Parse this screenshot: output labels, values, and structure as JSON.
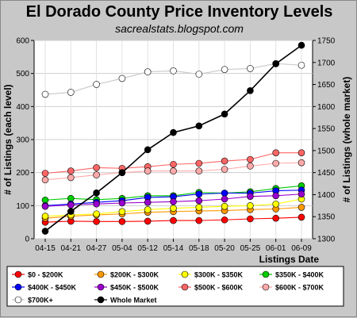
{
  "chart_data": {
    "type": "line",
    "title": "El Dorado County Price Inventory Levels",
    "subtitle": "sacrealstats.blogspot.com",
    "xlabel": "Listings Date",
    "ylabel_left": "# of Listings (each level)",
    "ylabel_right": "# of Listings (whole market)",
    "ylim_left": [
      0,
      600
    ],
    "ylim_right": [
      1300,
      1750
    ],
    "yticks_left": [
      0,
      100,
      200,
      300,
      400,
      500,
      600
    ],
    "yticks_right": [
      1300,
      1350,
      1400,
      1450,
      1500,
      1550,
      1600,
      1650,
      1700,
      1750
    ],
    "categories": [
      "04-15",
      "04-21",
      "04-27",
      "05-04",
      "05-12",
      "05-14",
      "05-18",
      "05-20",
      "05-25",
      "06-01",
      "06-09"
    ],
    "grid": true,
    "legend_position": "bottom",
    "series": [
      {
        "name": "$0 - $200K",
        "axis": "left",
        "color": "#ff0000",
        "values": [
          50,
          53,
          52,
          52,
          53,
          55,
          55,
          57,
          60,
          62,
          65
        ]
      },
      {
        "name": "$200K - $300K",
        "axis": "left",
        "color": "#ff9900",
        "values": [
          62,
          68,
          72,
          75,
          80,
          82,
          84,
          85,
          88,
          90,
          95
        ]
      },
      {
        "name": "$300K - $350K",
        "axis": "left",
        "color": "#ffff00",
        "values": [
          68,
          72,
          75,
          82,
          88,
          92,
          95,
          98,
          100,
          105,
          120
        ]
      },
      {
        "name": "$350K - $400K",
        "axis": "left",
        "color": "#00cc00",
        "values": [
          117,
          122,
          118,
          122,
          130,
          130,
          140,
          138,
          142,
          152,
          160
        ]
      },
      {
        "name": "$400K - $450K",
        "axis": "left",
        "color": "#0000ff",
        "values": [
          100,
          105,
          110,
          115,
          125,
          127,
          135,
          138,
          138,
          145,
          147
        ]
      },
      {
        "name": "$450K - $500K",
        "axis": "left",
        "color": "#9900cc",
        "values": [
          98,
          102,
          105,
          108,
          110,
          112,
          115,
          120,
          128,
          130,
          135
        ]
      },
      {
        "name": "$500K - $600K",
        "axis": "left",
        "color": "#ff6666",
        "values": [
          198,
          205,
          215,
          213,
          218,
          225,
          228,
          235,
          240,
          260,
          260
        ]
      },
      {
        "name": "$600K - $700K",
        "axis": "left",
        "color": "#ffaaaa",
        "values": [
          178,
          185,
          193,
          200,
          205,
          205,
          205,
          210,
          220,
          228,
          230
        ]
      },
      {
        "name": "$700K+",
        "axis": "left",
        "color": "#ffffff",
        "values": [
          437,
          443,
          467,
          485,
          505,
          508,
          498,
          512,
          515,
          530,
          525
        ]
      },
      {
        "name": "Whole Market",
        "axis": "right",
        "color": "#000000",
        "values": [
          1317,
          1362,
          1404,
          1450,
          1502,
          1541,
          1556,
          1583,
          1636,
          1697,
          1739
        ]
      }
    ]
  }
}
